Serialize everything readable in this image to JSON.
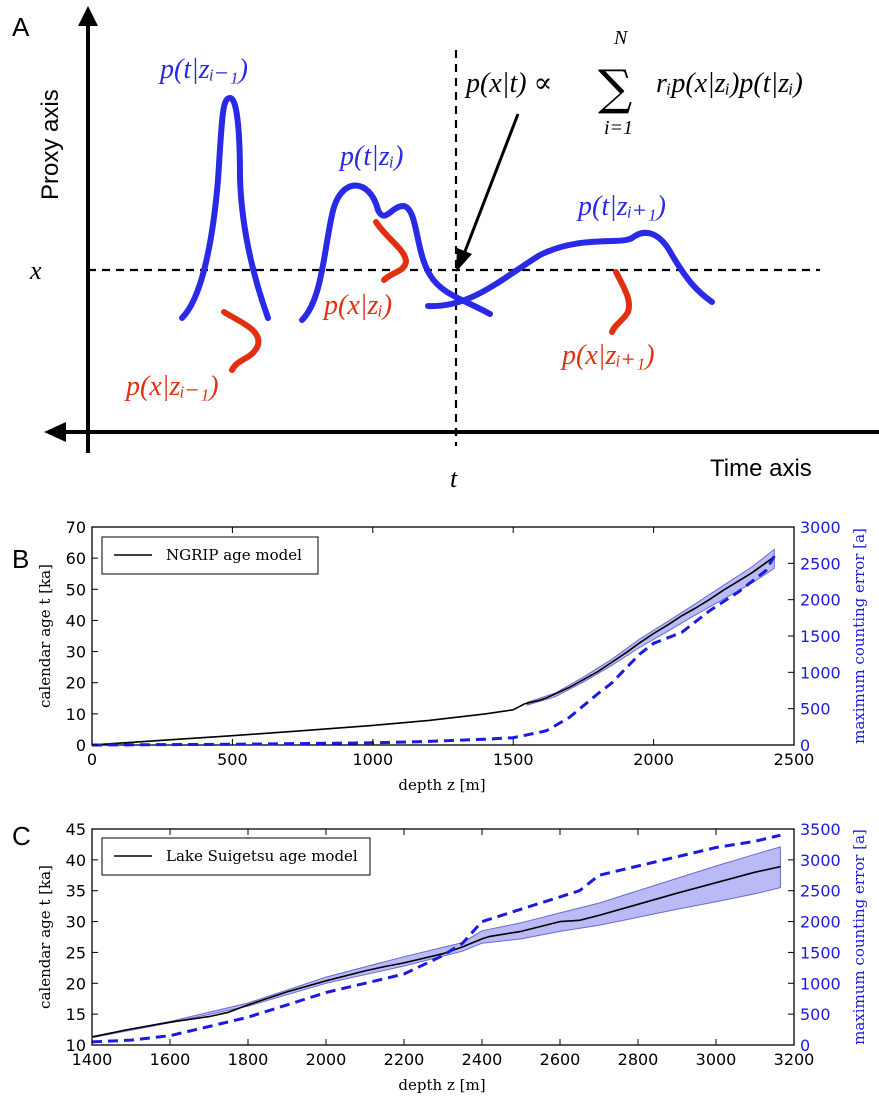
{
  "colors": {
    "axis": "#000000",
    "density": "#2a2ae6",
    "likelihood": "#e03010",
    "error": "#1a1ae0",
    "band": "#8c8cf0"
  },
  "panel_a": {
    "panel_label": "A",
    "y_axis_label": "Proxy axis",
    "x_axis_label": "Time axis",
    "x_marker": "x",
    "t_marker": "t",
    "formula": {
      "lhs": "p(x|t) ∝",
      "sum_symbol": "∑",
      "sum_upper": "N",
      "sum_lower": "i=1",
      "rhs": "rᵢp(x|zᵢ)p(t|zᵢ)"
    },
    "curve_labels": {
      "pt_prev": "p(t|zᵢ₋₁)",
      "pt_i": "p(t|zᵢ)",
      "pt_next": "p(t|zᵢ₊₁)",
      "px_prev": "p(x|zᵢ₋₁)",
      "px_i": "p(x|zᵢ)",
      "px_next": "p(x|zᵢ₊₁)"
    },
    "icons": [
      "arrow-icon"
    ]
  },
  "chart_data": [
    {
      "panel": "B",
      "type": "line",
      "xlabel": "depth z [m]",
      "ylabel": "calendar age t [ka]",
      "y2label": "maximum counting error [a]",
      "xlim": [
        0,
        2500
      ],
      "ylim": [
        0,
        70
      ],
      "y2lim": [
        0,
        3000
      ],
      "xticks": [
        "0",
        "500",
        "1000",
        "1500",
        "2000",
        "2500"
      ],
      "yticks": [
        "0",
        "10",
        "20",
        "30",
        "40",
        "50",
        "60",
        "70"
      ],
      "y2ticks": [
        "0",
        "500",
        "1000",
        "1500",
        "2000",
        "2500",
        "3000"
      ],
      "legend": {
        "label": "NGRIP age model",
        "position": "upper-left"
      },
      "series": [
        {
          "name": "NGRIP age model",
          "axis": "left",
          "x": [
            0,
            100,
            250,
            500,
            750,
            1000,
            1200,
            1400,
            1500,
            1540,
            1600,
            1620,
            1700,
            1800,
            1850,
            1900,
            1950,
            2000,
            2050,
            2100,
            2150,
            2200,
            2250,
            2300,
            2350,
            2400,
            2430
          ],
          "y": [
            0,
            0.6,
            1.5,
            3.0,
            4.6,
            6.3,
            7.9,
            10.0,
            11.3,
            13.2,
            14.5,
            15.2,
            18.5,
            23.5,
            26.5,
            29.5,
            32.8,
            35.8,
            38.5,
            41.5,
            44.0,
            46.8,
            49.8,
            52.5,
            55.3,
            58.5,
            60.5
          ]
        },
        {
          "name": "maximum counting error",
          "axis": "right",
          "style": "dashed",
          "x": [
            0,
            500,
            1000,
            1200,
            1400,
            1500,
            1600,
            1620,
            1700,
            1800,
            1850,
            1900,
            1950,
            2000,
            2100,
            2200,
            2300,
            2400,
            2430
          ],
          "y": [
            0,
            10,
            30,
            50,
            80,
            100,
            180,
            200,
            380,
            700,
            850,
            1050,
            1250,
            1400,
            1550,
            1850,
            2100,
            2400,
            2600
          ]
        }
      ],
      "band": {
        "x": [
          1550,
          1650,
          1750,
          1850,
          1950,
          2050,
          2150,
          2250,
          2350,
          2430
        ],
        "lower": [
          12.8,
          15.5,
          20.2,
          25.5,
          31.3,
          36.5,
          41.8,
          46.9,
          52.0,
          56.7
        ],
        "upper": [
          13.7,
          16.7,
          21.8,
          27.5,
          34.0,
          39.7,
          45.4,
          51.3,
          57.2,
          62.8
        ]
      }
    },
    {
      "panel": "C",
      "type": "line",
      "xlabel": "depth z [m]",
      "ylabel": "calendar age t [ka]",
      "y2label": "maximum counting error [a]",
      "xlim": [
        1400,
        3200
      ],
      "ylim": [
        10,
        45
      ],
      "y2lim": [
        0,
        3500
      ],
      "xticks": [
        "1400",
        "1600",
        "1800",
        "2000",
        "2200",
        "2400",
        "2600",
        "2800",
        "3000",
        "3200"
      ],
      "yticks": [
        "10",
        "15",
        "20",
        "25",
        "30",
        "35",
        "40",
        "45"
      ],
      "y2ticks": [
        "0",
        "500",
        "1000",
        "1500",
        "2000",
        "2500",
        "3000",
        "3500"
      ],
      "legend": {
        "label": "Lake Suigetsu age model",
        "position": "upper-left"
      },
      "series": [
        {
          "name": "Lake Suigetsu age model",
          "axis": "left",
          "x": [
            1400,
            1500,
            1600,
            1700,
            1750,
            1800,
            1900,
            2000,
            2100,
            2150,
            2200,
            2300,
            2350,
            2400,
            2420,
            2500,
            2600,
            2650,
            2700,
            2800,
            2900,
            3000,
            3100,
            3165
          ],
          "y": [
            11.3,
            12.6,
            13.7,
            14.6,
            15.3,
            16.5,
            18.6,
            20.4,
            22.0,
            22.7,
            23.3,
            24.8,
            25.9,
            27.2,
            27.6,
            28.4,
            30.0,
            30.2,
            31.0,
            32.8,
            34.6,
            36.3,
            38.0,
            38.9
          ]
        },
        {
          "name": "maximum counting error",
          "axis": "right",
          "style": "dashed",
          "x": [
            1400,
            1500,
            1600,
            1700,
            1800,
            1900,
            2000,
            2100,
            2200,
            2300,
            2350,
            2400,
            2500,
            2600,
            2650,
            2700,
            2800,
            2900,
            3000,
            3100,
            3165
          ],
          "y": [
            50,
            80,
            150,
            300,
            450,
            650,
            850,
            1000,
            1150,
            1450,
            1650,
            2000,
            2200,
            2400,
            2500,
            2750,
            2900,
            3050,
            3200,
            3300,
            3400
          ]
        }
      ],
      "band": {
        "x": [
          1400,
          1600,
          1800,
          2000,
          2200,
          2350,
          2400,
          2500,
          2600,
          2700,
          2800,
          2900,
          3000,
          3100,
          3165
        ],
        "lower": [
          11.2,
          13.6,
          16.3,
          20.0,
          22.8,
          25.2,
          26.5,
          27.2,
          28.4,
          29.4,
          30.7,
          32.0,
          33.2,
          34.5,
          35.5
        ],
        "upper": [
          11.4,
          13.8,
          16.8,
          21.0,
          24.3,
          26.6,
          28.5,
          29.8,
          31.4,
          33.0,
          35.0,
          37.0,
          39.0,
          40.9,
          42.1
        ]
      }
    }
  ]
}
